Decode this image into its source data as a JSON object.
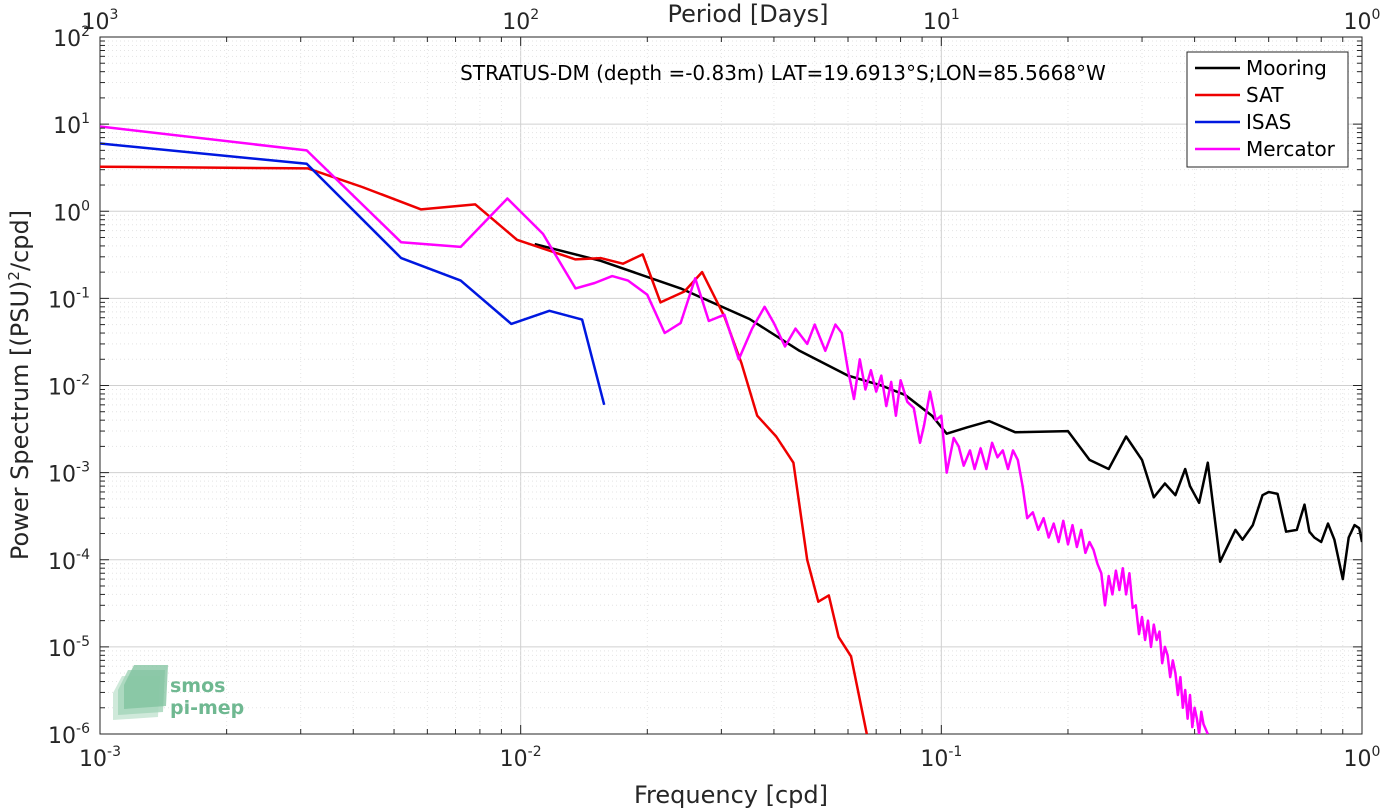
{
  "chart_data": {
    "type": "line",
    "title": "STRATUS-DM (depth =-0.83m) LAT=19.6913°S;LON=85.5668°W",
    "xlabel": "Frequency [cpd]",
    "ylabel_base": "Power Spectrum [(PSU)",
    "ylabel_sup": "2",
    "ylabel_tail": "/cpd]",
    "top_xlabel": "Period [Days]",
    "x_scale": "log",
    "y_scale": "log",
    "xlim": [
      0.001,
      1
    ],
    "ylim": [
      1e-06,
      100
    ],
    "grid": true,
    "legend_position": "top-right",
    "x_ticks": [
      {
        "base": "10",
        "exp": "-3",
        "value": 0.001
      },
      {
        "base": "10",
        "exp": "-2",
        "value": 0.01
      },
      {
        "base": "10",
        "exp": "-1",
        "value": 0.1
      },
      {
        "base": "10",
        "exp": "0",
        "value": 1
      }
    ],
    "y_ticks": [
      {
        "base": "10",
        "exp": "-6",
        "value": 1e-06
      },
      {
        "base": "10",
        "exp": "-5",
        "value": 1e-05
      },
      {
        "base": "10",
        "exp": "-4",
        "value": 0.0001
      },
      {
        "base": "10",
        "exp": "-3",
        "value": 0.001
      },
      {
        "base": "10",
        "exp": "-2",
        "value": 0.01
      },
      {
        "base": "10",
        "exp": "-1",
        "value": 0.1
      },
      {
        "base": "10",
        "exp": "0",
        "value": 1
      },
      {
        "base": "10",
        "exp": "1",
        "value": 10
      },
      {
        "base": "10",
        "exp": "2",
        "value": 100
      }
    ],
    "top_ticks": [
      {
        "base": "10",
        "exp": "3",
        "value": 1000
      },
      {
        "base": "10",
        "exp": "2",
        "value": 100
      },
      {
        "base": "10",
        "exp": "1",
        "value": 10
      },
      {
        "base": "10",
        "exp": "0",
        "value": 1
      }
    ],
    "series": [
      {
        "name": "Mooring",
        "color": "#000000",
        "points": [
          [
            0.0108,
            0.42
          ],
          [
            0.0155,
            0.27
          ],
          [
            0.024,
            0.13
          ],
          [
            0.035,
            0.058
          ],
          [
            0.046,
            0.025
          ],
          [
            0.06,
            0.013
          ],
          [
            0.072,
            0.01
          ],
          [
            0.082,
            0.0078
          ],
          [
            0.095,
            0.0045
          ],
          [
            0.103,
            0.0028
          ],
          [
            0.115,
            0.0033
          ],
          [
            0.13,
            0.0039
          ],
          [
            0.15,
            0.0029
          ],
          [
            0.2,
            0.003
          ],
          [
            0.225,
            0.0014
          ],
          [
            0.25,
            0.0011
          ],
          [
            0.275,
            0.0026
          ],
          [
            0.3,
            0.0014
          ],
          [
            0.32,
            0.00052
          ],
          [
            0.34,
            0.00075
          ],
          [
            0.36,
            0.00055
          ],
          [
            0.38,
            0.0011
          ],
          [
            0.39,
            0.0007
          ],
          [
            0.41,
            0.00045
          ],
          [
            0.43,
            0.0013
          ],
          [
            0.46,
            9.5e-05
          ],
          [
            0.5,
            0.00022
          ],
          [
            0.52,
            0.00017
          ],
          [
            0.55,
            0.00025
          ],
          [
            0.58,
            0.00055
          ],
          [
            0.6,
            0.0006
          ],
          [
            0.63,
            0.00057
          ],
          [
            0.66,
            0.00021
          ],
          [
            0.7,
            0.00022
          ],
          [
            0.73,
            0.00043
          ],
          [
            0.75,
            0.00021
          ],
          [
            0.77,
            0.00018
          ],
          [
            0.8,
            0.00016
          ],
          [
            0.83,
            0.00026
          ],
          [
            0.86,
            0.00017
          ],
          [
            0.9,
            6e-05
          ],
          [
            0.93,
            0.00018
          ],
          [
            0.96,
            0.00025
          ],
          [
            0.985,
            0.00023
          ],
          [
            1.0,
            0.00016
          ]
        ]
      },
      {
        "name": "SAT",
        "color": "#ee0000",
        "points": [
          [
            0.001,
            3.25
          ],
          [
            0.00312,
            3.1
          ],
          [
            0.0042,
            1.9
          ],
          [
            0.0058,
            1.05
          ],
          [
            0.0078,
            1.2
          ],
          [
            0.0098,
            0.47
          ],
          [
            0.0135,
            0.28
          ],
          [
            0.0155,
            0.29
          ],
          [
            0.0175,
            0.25
          ],
          [
            0.0195,
            0.32
          ],
          [
            0.0215,
            0.09
          ],
          [
            0.0245,
            0.12
          ],
          [
            0.027,
            0.2
          ],
          [
            0.0305,
            0.062
          ],
          [
            0.0335,
            0.018
          ],
          [
            0.0365,
            0.0045
          ],
          [
            0.0405,
            0.0026
          ],
          [
            0.0445,
            0.0013
          ],
          [
            0.048,
            0.0001
          ],
          [
            0.051,
            3.3e-05
          ],
          [
            0.054,
            3.9e-05
          ],
          [
            0.057,
            1.3e-05
          ],
          [
            0.061,
            7.8e-06
          ],
          [
            0.0665,
            1e-06
          ]
        ]
      },
      {
        "name": "ISAS",
        "color": "#0018e0",
        "points": [
          [
            0.001,
            6.0
          ],
          [
            0.0031,
            3.5
          ],
          [
            0.0052,
            0.29
          ],
          [
            0.0072,
            0.16
          ],
          [
            0.0095,
            0.051
          ],
          [
            0.0117,
            0.072
          ],
          [
            0.014,
            0.057
          ],
          [
            0.0158,
            0.006
          ]
        ]
      },
      {
        "name": "Mercator",
        "color": "#ff00ff",
        "points": [
          [
            0.001,
            9.4
          ],
          [
            0.0031,
            5.0
          ],
          [
            0.0052,
            0.44
          ],
          [
            0.0072,
            0.39
          ],
          [
            0.0093,
            1.4
          ],
          [
            0.0113,
            0.55
          ],
          [
            0.0135,
            0.13
          ],
          [
            0.015,
            0.15
          ],
          [
            0.0165,
            0.18
          ],
          [
            0.018,
            0.16
          ],
          [
            0.02,
            0.11
          ],
          [
            0.022,
            0.04
          ],
          [
            0.024,
            0.052
          ],
          [
            0.026,
            0.17
          ],
          [
            0.028,
            0.055
          ],
          [
            0.0305,
            0.065
          ],
          [
            0.033,
            0.02
          ],
          [
            0.0355,
            0.045
          ],
          [
            0.038,
            0.08
          ],
          [
            0.04,
            0.052
          ],
          [
            0.0425,
            0.028
          ],
          [
            0.045,
            0.045
          ],
          [
            0.048,
            0.03
          ],
          [
            0.05,
            0.05
          ],
          [
            0.053,
            0.025
          ],
          [
            0.056,
            0.05
          ],
          [
            0.058,
            0.04
          ],
          [
            0.06,
            0.015
          ],
          [
            0.062,
            0.007
          ],
          [
            0.064,
            0.02
          ],
          [
            0.066,
            0.009
          ],
          [
            0.068,
            0.015
          ],
          [
            0.07,
            0.0085
          ],
          [
            0.072,
            0.013
          ],
          [
            0.074,
            0.0058
          ],
          [
            0.076,
            0.011
          ],
          [
            0.078,
            0.0045
          ],
          [
            0.08,
            0.0115
          ],
          [
            0.083,
            0.0065
          ],
          [
            0.086,
            0.0055
          ],
          [
            0.089,
            0.0022
          ],
          [
            0.091,
            0.0035
          ],
          [
            0.094,
            0.0085
          ],
          [
            0.097,
            0.004
          ],
          [
            0.1,
            0.0045
          ],
          [
            0.103,
            0.001
          ],
          [
            0.107,
            0.0025
          ],
          [
            0.11,
            0.002
          ],
          [
            0.113,
            0.0012
          ],
          [
            0.117,
            0.0018
          ],
          [
            0.12,
            0.0011
          ],
          [
            0.124,
            0.0019
          ],
          [
            0.128,
            0.0011
          ],
          [
            0.132,
            0.0022
          ],
          [
            0.136,
            0.0015
          ],
          [
            0.14,
            0.0018
          ],
          [
            0.144,
            0.0011
          ],
          [
            0.148,
            0.0018
          ],
          [
            0.152,
            0.0014
          ],
          [
            0.156,
            0.0007
          ],
          [
            0.16,
            0.0003
          ],
          [
            0.165,
            0.00035
          ],
          [
            0.17,
            0.00022
          ],
          [
            0.175,
            0.0003
          ],
          [
            0.18,
            0.00018
          ],
          [
            0.185,
            0.00026
          ],
          [
            0.19,
            0.00016
          ],
          [
            0.195,
            0.00028
          ],
          [
            0.2,
            0.00015
          ],
          [
            0.205,
            0.00025
          ],
          [
            0.21,
            0.00014
          ],
          [
            0.215,
            0.00022
          ],
          [
            0.22,
            0.00012
          ],
          [
            0.225,
            0.00016
          ],
          [
            0.23,
            0.00013
          ],
          [
            0.235,
            9e-05
          ],
          [
            0.24,
            7e-05
          ],
          [
            0.245,
            3e-05
          ],
          [
            0.25,
            6.5e-05
          ],
          [
            0.255,
            4e-05
          ],
          [
            0.26,
            7.5e-05
          ],
          [
            0.265,
            4.5e-05
          ],
          [
            0.27,
            8e-05
          ],
          [
            0.275,
            4e-05
          ],
          [
            0.28,
            7e-05
          ],
          [
            0.285,
            2.8e-05
          ],
          [
            0.29,
            3e-05
          ],
          [
            0.295,
            1.4e-05
          ],
          [
            0.3,
            2.2e-05
          ],
          [
            0.305,
            1.2e-05
          ],
          [
            0.31,
            2e-05
          ],
          [
            0.315,
            1e-05
          ],
          [
            0.32,
            1.8e-05
          ],
          [
            0.325,
            1.2e-05
          ],
          [
            0.33,
            1.5e-05
          ],
          [
            0.335,
            6.5e-06
          ],
          [
            0.34,
            1e-05
          ],
          [
            0.345,
            8e-06
          ],
          [
            0.35,
            4.5e-06
          ],
          [
            0.355,
            7e-06
          ],
          [
            0.36,
            5e-06
          ],
          [
            0.365,
            2.8e-06
          ],
          [
            0.37,
            4.5e-06
          ],
          [
            0.375,
            2e-06
          ],
          [
            0.38,
            3.2e-06
          ],
          [
            0.385,
            1.5e-06
          ],
          [
            0.39,
            2.8e-06
          ],
          [
            0.395,
            1.2e-06
          ],
          [
            0.4,
            2e-06
          ],
          [
            0.405,
            1.5e-06
          ],
          [
            0.41,
            1e-06
          ],
          [
            0.415,
            1.8e-06
          ],
          [
            0.42,
            1.3e-06
          ],
          [
            0.43,
            1e-06
          ]
        ]
      }
    ]
  },
  "watermark": {
    "line1": "smos",
    "line2": "pi-mep"
  }
}
